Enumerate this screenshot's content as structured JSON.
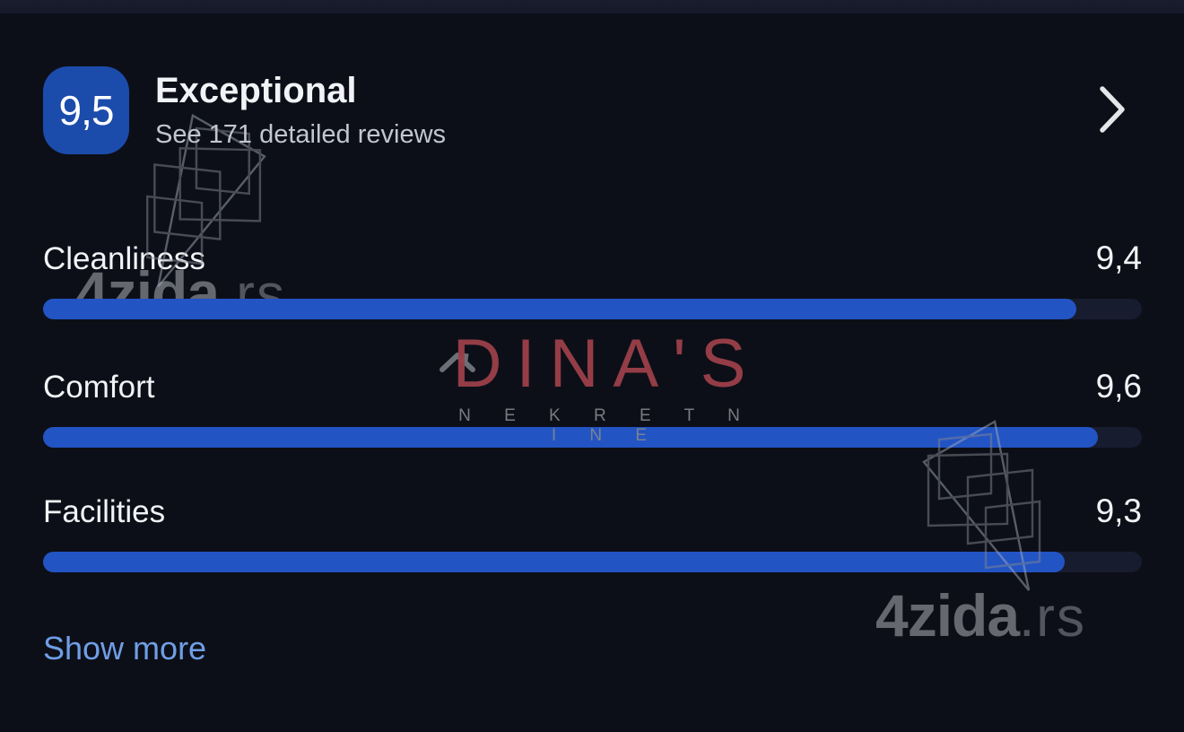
{
  "colors": {
    "background": "#0d0f18",
    "badge_blue": "#1b4cab",
    "bar_fill_blue": "#2254c4",
    "bar_track": "#171c2f",
    "link_blue": "#6f9fe6",
    "watermark_red": "#9c404a"
  },
  "summary": {
    "score": "9,5",
    "title": "Exceptional",
    "subtitle": "See 171 detailed reviews",
    "chevron_icon": "chevron-right-icon"
  },
  "ratings": [
    {
      "label": "Cleanliness",
      "value": "9,4",
      "pct": 94
    },
    {
      "label": "Comfort",
      "value": "9,6",
      "pct": 96
    },
    {
      "label": "Facilities",
      "value": "9,3",
      "pct": 93
    }
  ],
  "show_more_label": "Show more",
  "watermarks": {
    "site_bold": "4zida",
    "site_suffix": ".rs",
    "agency_name": "DINA'S",
    "agency_subtitle": "N E K R E T N I N E"
  }
}
